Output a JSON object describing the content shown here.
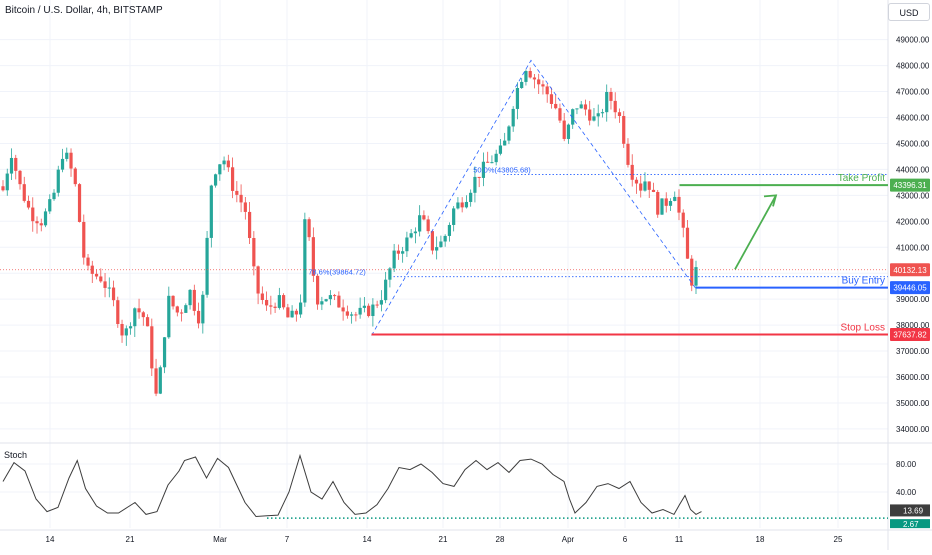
{
  "header": {
    "title": "Bitcoin / U.S. Dollar, 4h, BITSTAMP",
    "currency": "USD"
  },
  "colors": {
    "up": "#26a69a",
    "down": "#ef5350",
    "grid": "#f0f3fa",
    "axis_text": "#131722",
    "take_profit": "#4caf50",
    "buy_entry": "#2962ff",
    "stop_loss": "#f23645",
    "fib": "#2962ff",
    "stoch_line": "#3d3d3d",
    "stoch_dots": "#089981"
  },
  "chart_data": [
    {
      "type": "candlestick",
      "title": "Bitcoin / U.S. Dollar, 4h, BITSTAMP",
      "y_axis": {
        "ticks": [
          34000,
          35000,
          36000,
          37000,
          38000,
          39000,
          40000,
          41000,
          42000,
          43000,
          44000,
          45000,
          46000,
          47000,
          48000,
          49000
        ],
        "tick_labels": [
          "34000.00",
          "35000.00",
          "36000.00",
          "37000.00",
          "38000.00",
          "39000.00",
          "40000.00",
          "41000.00",
          "42000.00",
          "43000.00",
          "44000.00",
          "45000.00",
          "46000.00",
          "47000.00",
          "48000.00",
          "49000.00"
        ],
        "range": [
          33600,
          49400
        ]
      },
      "x_axis": {
        "tick_labels": [
          "14",
          "21",
          "Mar",
          "7",
          "14",
          "21",
          "28",
          "Apr",
          "6",
          "11",
          "18",
          "25"
        ]
      },
      "close_path": [
        {
          "t": 0,
          "p": 43200
        },
        {
          "t": 1.5,
          "p": 44700
        },
        {
          "t": 3,
          "p": 43400
        },
        {
          "t": 5,
          "p": 42300
        },
        {
          "t": 7,
          "p": 42000
        },
        {
          "t": 9,
          "p": 42800
        },
        {
          "t": 11,
          "p": 44800
        },
        {
          "t": 13,
          "p": 43600
        },
        {
          "t": 15,
          "p": 40100
        },
        {
          "t": 18,
          "p": 39800
        },
        {
          "t": 20,
          "p": 38900
        },
        {
          "t": 22,
          "p": 37500
        },
        {
          "t": 24,
          "p": 38700
        },
        {
          "t": 26,
          "p": 38200
        },
        {
          "t": 28,
          "p": 35000
        },
        {
          "t": 30,
          "p": 39000
        },
        {
          "t": 32,
          "p": 38400
        },
        {
          "t": 34,
          "p": 39300
        },
        {
          "t": 35,
          "p": 38600
        },
        {
          "t": 36,
          "p": 38100
        },
        {
          "t": 38,
          "p": 43800
        },
        {
          "t": 40,
          "p": 44500
        },
        {
          "t": 42,
          "p": 43200
        },
        {
          "t": 44,
          "p": 42500
        },
        {
          "t": 46,
          "p": 39400
        },
        {
          "t": 48,
          "p": 38600
        },
        {
          "t": 50,
          "p": 39000
        },
        {
          "t": 52,
          "p": 38200
        },
        {
          "t": 54,
          "p": 38600
        },
        {
          "t": 55,
          "p": 42300
        },
        {
          "t": 57,
          "p": 39000
        },
        {
          "t": 59,
          "p": 39100
        },
        {
          "t": 62,
          "p": 38700
        },
        {
          "t": 64,
          "p": 38400
        },
        {
          "t": 67,
          "p": 38600
        },
        {
          "t": 69,
          "p": 39200
        },
        {
          "t": 71,
          "p": 40600
        },
        {
          "t": 74,
          "p": 41400
        },
        {
          "t": 76,
          "p": 42200
        },
        {
          "t": 78,
          "p": 41000
        },
        {
          "t": 80,
          "p": 41200
        },
        {
          "t": 82,
          "p": 42500
        },
        {
          "t": 84,
          "p": 42900
        },
        {
          "t": 86,
          "p": 43700
        },
        {
          "t": 88,
          "p": 44200
        },
        {
          "t": 91,
          "p": 44800
        },
        {
          "t": 93,
          "p": 46800
        },
        {
          "t": 95,
          "p": 48000
        },
        {
          "t": 97,
          "p": 47400
        },
        {
          "t": 99,
          "p": 46900
        },
        {
          "t": 101,
          "p": 46200
        },
        {
          "t": 102,
          "p": 45000
        },
        {
          "t": 104,
          "p": 46500
        },
        {
          "t": 106,
          "p": 46300
        },
        {
          "t": 108,
          "p": 45800
        },
        {
          "t": 110,
          "p": 46900
        },
        {
          "t": 112,
          "p": 46100
        },
        {
          "t": 114,
          "p": 44000
        },
        {
          "t": 116,
          "p": 43300
        },
        {
          "t": 117,
          "p": 43700
        },
        {
          "t": 119,
          "p": 42500
        },
        {
          "t": 121,
          "p": 42800
        },
        {
          "t": 122,
          "p": 43300
        },
        {
          "t": 123,
          "p": 42200
        },
        {
          "t": 124,
          "p": 41200
        },
        {
          "t": 125,
          "p": 39600
        },
        {
          "t": 126,
          "p": 40100
        }
      ],
      "candle_count": 164
    },
    {
      "type": "line",
      "title": "Stoch",
      "y_axis": {
        "ticks": [
          40,
          80
        ],
        "tick_labels": [
          "40.00",
          "80.00"
        ],
        "range": [
          0,
          100
        ]
      },
      "current_values": [
        "13.69",
        "2.67"
      ],
      "series": [
        {
          "points": [
            {
              "t": 0,
              "v": 55
            },
            {
              "t": 2,
              "v": 82
            },
            {
              "t": 4,
              "v": 70
            },
            {
              "t": 6,
              "v": 30
            },
            {
              "t": 8,
              "v": 12
            },
            {
              "t": 10,
              "v": 18
            },
            {
              "t": 12,
              "v": 60
            },
            {
              "t": 13.5,
              "v": 85
            },
            {
              "t": 15,
              "v": 45
            },
            {
              "t": 17,
              "v": 20
            },
            {
              "t": 19,
              "v": 10
            },
            {
              "t": 21,
              "v": 10
            },
            {
              "t": 24,
              "v": 25
            },
            {
              "t": 26,
              "v": 8
            },
            {
              "t": 28,
              "v": 12
            },
            {
              "t": 30,
              "v": 50
            },
            {
              "t": 32,
              "v": 70
            },
            {
              "t": 33,
              "v": 85
            },
            {
              "t": 35,
              "v": 90
            },
            {
              "t": 37,
              "v": 60
            },
            {
              "t": 39,
              "v": 88
            },
            {
              "t": 41,
              "v": 75
            },
            {
              "t": 44,
              "v": 25
            },
            {
              "t": 46,
              "v": 5
            },
            {
              "t": 48,
              "v": 6
            },
            {
              "t": 50,
              "v": 7
            },
            {
              "t": 52,
              "v": 40
            },
            {
              "t": 54,
              "v": 92
            },
            {
              "t": 56,
              "v": 40
            },
            {
              "t": 58,
              "v": 30
            },
            {
              "t": 60,
              "v": 55
            },
            {
              "t": 62,
              "v": 25
            },
            {
              "t": 64,
              "v": 8
            },
            {
              "t": 66,
              "v": 10
            },
            {
              "t": 68,
              "v": 22
            },
            {
              "t": 70,
              "v": 45
            },
            {
              "t": 72,
              "v": 75
            },
            {
              "t": 74,
              "v": 72
            },
            {
              "t": 76,
              "v": 80
            },
            {
              "t": 78,
              "v": 68
            },
            {
              "t": 80,
              "v": 52
            },
            {
              "t": 82,
              "v": 48
            },
            {
              "t": 84,
              "v": 72
            },
            {
              "t": 86,
              "v": 85
            },
            {
              "t": 88,
              "v": 72
            },
            {
              "t": 90,
              "v": 82
            },
            {
              "t": 92,
              "v": 68
            },
            {
              "t": 94,
              "v": 85
            },
            {
              "t": 96,
              "v": 87
            },
            {
              "t": 98,
              "v": 80
            },
            {
              "t": 100,
              "v": 65
            },
            {
              "t": 102,
              "v": 55
            },
            {
              "t": 103,
              "v": 30
            },
            {
              "t": 104,
              "v": 10
            },
            {
              "t": 106,
              "v": 25
            },
            {
              "t": 108,
              "v": 48
            },
            {
              "t": 110,
              "v": 52
            },
            {
              "t": 112,
              "v": 45
            },
            {
              "t": 114,
              "v": 55
            },
            {
              "t": 116,
              "v": 25
            },
            {
              "t": 118,
              "v": 10
            },
            {
              "t": 120,
              "v": 15
            },
            {
              "t": 122,
              "v": 8
            },
            {
              "t": 123,
              "v": 22
            },
            {
              "t": 124,
              "v": 35
            },
            {
              "t": 125,
              "v": 15
            },
            {
              "t": 126,
              "v": 8
            },
            {
              "t": 127,
              "v": 12
            }
          ]
        }
      ]
    }
  ],
  "annotations": {
    "take_profit": {
      "label": "Take Profit",
      "price": 43396.31,
      "price_label": "43396.31"
    },
    "buy_entry": {
      "label": "Buy Entry",
      "price": 39446.05,
      "price_label": "39446.05"
    },
    "stop_loss": {
      "label": "Stop Loss",
      "price": 37637.82,
      "price_label": "37637.82"
    },
    "current_price": {
      "price": 40132.13,
      "price_label": "40132.13"
    },
    "fib_50": {
      "label": "50.0%(43805.68)",
      "price": 43805.68
    },
    "fib_786": {
      "label": "78.6%(39864.72)",
      "price": 39864.72
    }
  }
}
